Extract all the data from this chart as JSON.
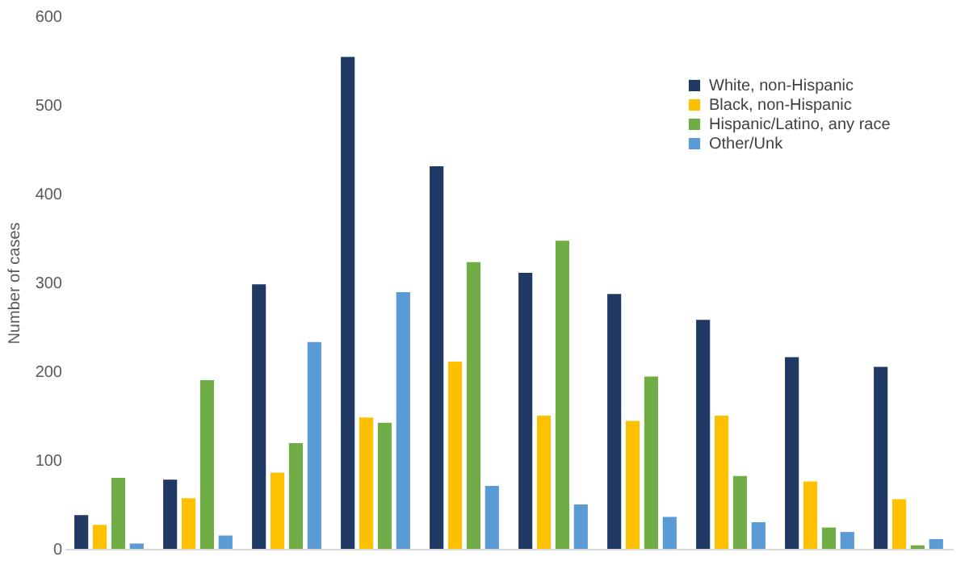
{
  "chart_data": {
    "type": "bar",
    "ylabel": "Number of cases",
    "categories": [
      null,
      null,
      null,
      null,
      null,
      null,
      null,
      null,
      null,
      null
    ],
    "series": [
      {
        "name": "White, non-Hispanic",
        "color": "#203864",
        "values": [
          38,
          78,
          298,
          554,
          431,
          311,
          287,
          258,
          216,
          205
        ]
      },
      {
        "name": "Black, non-Hispanic",
        "color": "#ffc000",
        "values": [
          27,
          57,
          86,
          148,
          211,
          150,
          144,
          150,
          76,
          56
        ]
      },
      {
        "name": "Hispanic/Latino, any race",
        "color": "#70ad47",
        "values": [
          80,
          190,
          119,
          142,
          323,
          347,
          194,
          82,
          24,
          4
        ]
      },
      {
        "name": "Other/Unk",
        "color": "#5b9bd5",
        "values": [
          6,
          15,
          233,
          289,
          71,
          50,
          36,
          30,
          19,
          11
        ]
      }
    ],
    "ylim": [
      0,
      600
    ],
    "yticks": [
      0,
      100,
      200,
      300,
      400,
      500,
      600
    ],
    "grid": false,
    "legend": "top right",
    "tick_labels": "y"
  }
}
